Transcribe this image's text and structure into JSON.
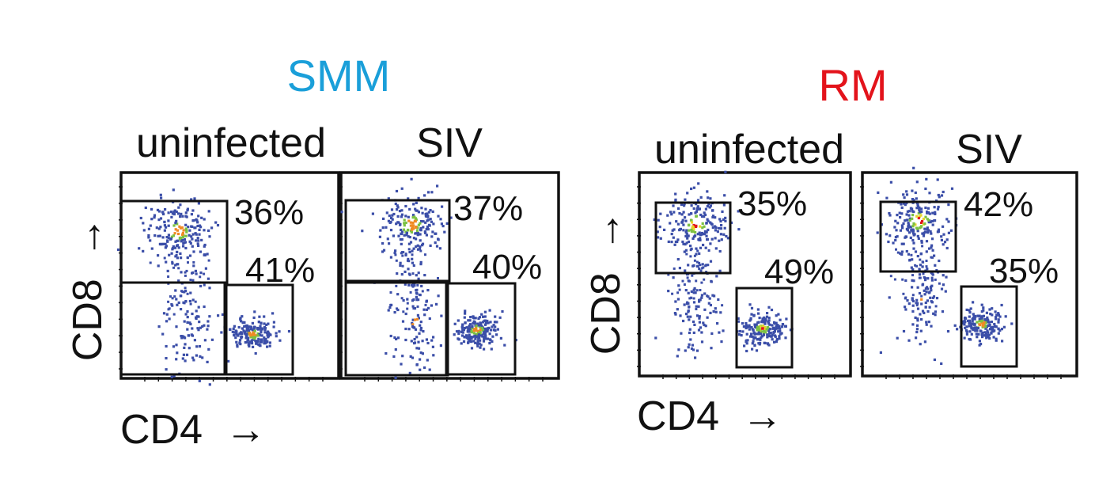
{
  "colors": {
    "smm": "#1a9fd9",
    "rm": "#e3131b",
    "density_low": "#3b4ea8",
    "density_mid": "#7cc142",
    "density_midhigh": "#e8d52a",
    "density_high": "#f08a24",
    "density_peak": "#e3131b"
  },
  "arrow_glyph": "→",
  "chart_data": [
    {
      "type": "scatter",
      "group": "SMM",
      "title": "uninfected",
      "xlabel": "CD4",
      "ylabel": "CD8",
      "gates": [
        {
          "name": "CD8+",
          "percent": "36%"
        },
        {
          "name": "CD4+",
          "percent": "41%"
        }
      ],
      "populations": [
        {
          "name": "CD8+",
          "x": 0.26,
          "y": 0.72,
          "level": "high"
        },
        {
          "name": "CD4-CD8-",
          "x": 0.3,
          "y": 0.28,
          "level": "mid"
        },
        {
          "name": "CD4+",
          "x": 0.6,
          "y": 0.22,
          "level": "high"
        }
      ]
    },
    {
      "type": "scatter",
      "group": "SMM",
      "title": "SIV",
      "xlabel": "CD4",
      "ylabel": "CD8",
      "gates": [
        {
          "name": "CD8+",
          "percent": "37%"
        },
        {
          "name": "CD4+",
          "percent": "40%"
        }
      ],
      "populations": [
        {
          "name": "CD8+",
          "x": 0.32,
          "y": 0.75,
          "level": "high"
        },
        {
          "name": "CD4-CD8-",
          "x": 0.33,
          "y": 0.3,
          "level": "mid"
        },
        {
          "name": "CD4+",
          "x": 0.62,
          "y": 0.24,
          "level": "high"
        }
      ]
    },
    {
      "type": "scatter",
      "group": "RM",
      "title": "uninfected",
      "xlabel": "CD4",
      "ylabel": "CD8",
      "gates": [
        {
          "name": "CD8+",
          "percent": "35%"
        },
        {
          "name": "CD4+",
          "percent": "49%"
        }
      ],
      "populations": [
        {
          "name": "CD8+",
          "x": 0.26,
          "y": 0.75,
          "level": "peak"
        },
        {
          "name": "CD4-CD8-",
          "x": 0.26,
          "y": 0.35,
          "level": "mid"
        },
        {
          "name": "CD4+",
          "x": 0.58,
          "y": 0.24,
          "level": "peak"
        }
      ]
    },
    {
      "type": "scatter",
      "group": "RM",
      "title": "SIV",
      "xlabel": "CD4",
      "ylabel": "CD8",
      "gates": [
        {
          "name": "CD8+",
          "percent": "42%"
        },
        {
          "name": "CD4+",
          "percent": "35%"
        }
      ],
      "populations": [
        {
          "name": "CD8+",
          "x": 0.26,
          "y": 0.77,
          "level": "peak"
        },
        {
          "name": "CD4-CD8-",
          "x": 0.28,
          "y": 0.4,
          "level": "mid"
        },
        {
          "name": "CD4+",
          "x": 0.55,
          "y": 0.26,
          "level": "high"
        }
      ]
    }
  ],
  "labels": {
    "smm_title": "SMM",
    "rm_title": "RM",
    "smm_uninfected": "uninfected",
    "smm_siv": "SIV",
    "rm_uninfected": "uninfected",
    "rm_siv": "SIV",
    "xlabel_left": "CD4",
    "xlabel_right": "CD4",
    "ylabel_left": "CD8",
    "ylabel_right": "CD8"
  }
}
